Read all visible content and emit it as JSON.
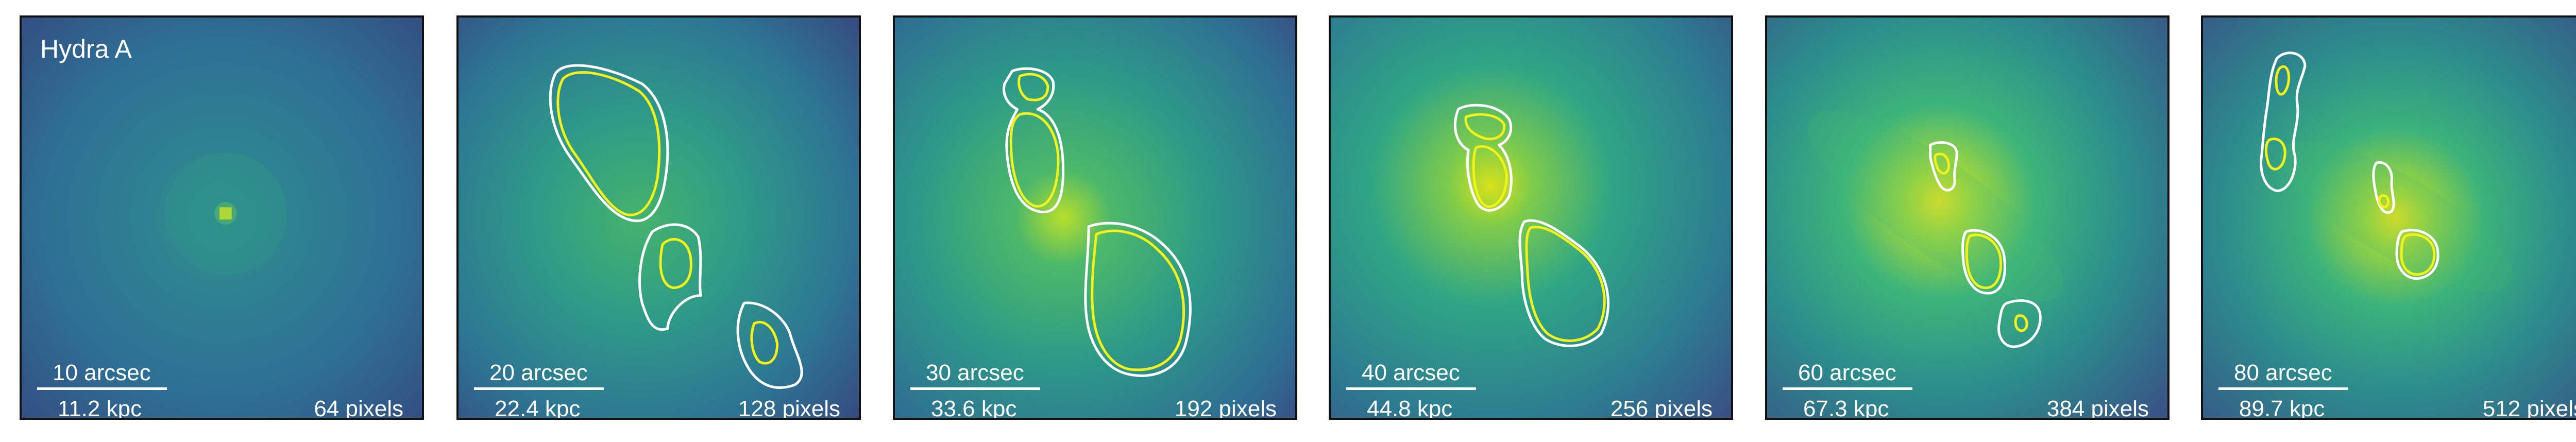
{
  "object_name": "Hydra A",
  "panels": [
    {
      "arcsec": "10 arcsec",
      "kpc": "11.2 kpc",
      "pixels": "64 pixels"
    },
    {
      "arcsec": "20 arcsec",
      "kpc": "22.4 kpc",
      "pixels": "128 pixels"
    },
    {
      "arcsec": "30 arcsec",
      "kpc": "33.6 kpc",
      "pixels": "192 pixels"
    },
    {
      "arcsec": "40 arcsec",
      "kpc": "44.8 kpc",
      "pixels": "256 pixels"
    },
    {
      "arcsec": "60 arcsec",
      "kpc": "67.3 kpc",
      "pixels": "384 pixels"
    },
    {
      "arcsec": "80 arcsec",
      "kpc": "89.7 kpc",
      "pixels": "512 pixels"
    }
  ],
  "colors": {
    "background_dark": "#2f4f8c",
    "background_mid": "#2a8a8a",
    "core_bright": "#e8e51a",
    "contour_outer": "#ffffff",
    "contour_inner": "#f2f21a",
    "frame": "#111111"
  }
}
